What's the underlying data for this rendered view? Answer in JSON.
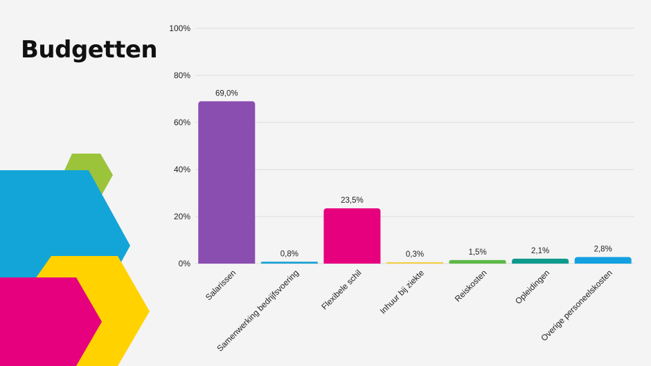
{
  "page": {
    "title": "Budgetten"
  },
  "colors": {
    "background": "#f4f4f4",
    "gridline": "#dddddd",
    "decor_green": "#9bc43b",
    "decor_blue": "#13a5d8",
    "decor_yellow": "#ffd200",
    "decor_magenta": "#e6007e"
  },
  "chart_data": {
    "type": "bar",
    "categories": [
      "Salarissen",
      "Samenwerking bedrijfsvoering",
      "Flexibele schil",
      "Inhuur bij ziekte",
      "Reiskosten",
      "Opleidingen",
      "Overige personeelskosten"
    ],
    "values": [
      69.0,
      0.8,
      23.5,
      0.3,
      1.5,
      2.1,
      2.8
    ],
    "value_labels": [
      "69,0%",
      "0,8%",
      "23,5%",
      "0,3%",
      "1,5%",
      "2,1%",
      "2,8%"
    ],
    "bar_colors": [
      "#8a4db0",
      "#1aa3d3",
      "#e6007e",
      "#f5cf3b",
      "#5cb947",
      "#0f9a8e",
      "#13a0e0"
    ],
    "ylim": [
      0,
      100
    ],
    "yticks": [
      0,
      20,
      40,
      60,
      80,
      100
    ],
    "ytick_labels": [
      "0%",
      "20%",
      "40%",
      "60%",
      "80%",
      "100%"
    ],
    "grid": true,
    "legend": "none"
  }
}
